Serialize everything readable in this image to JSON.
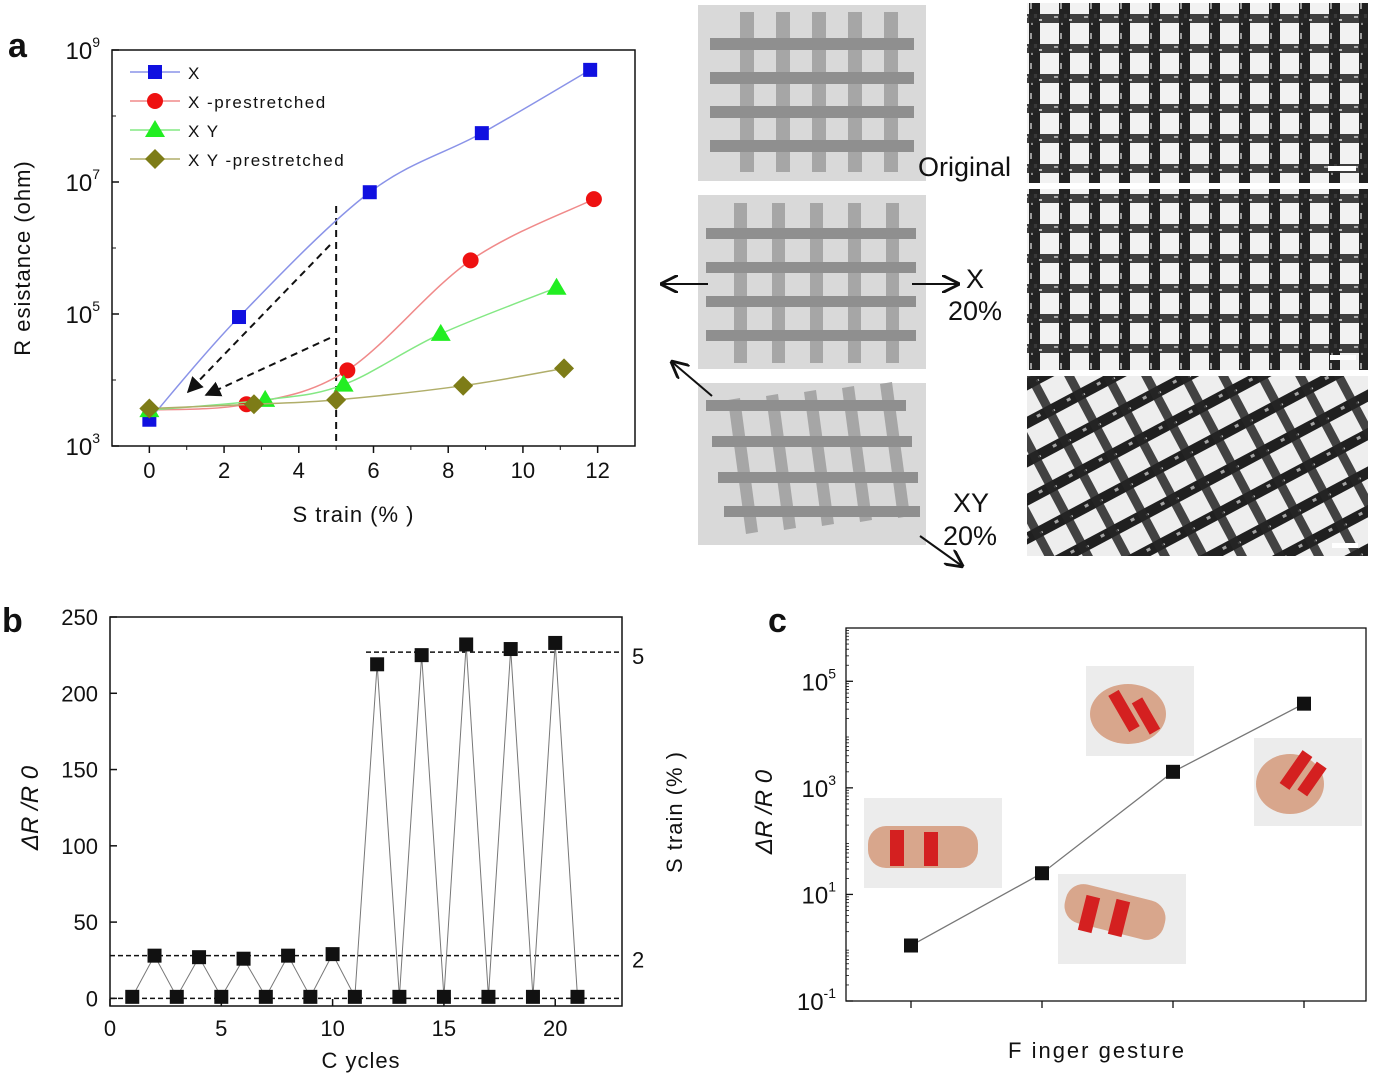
{
  "panels": {
    "a": "a",
    "b": "b",
    "c": "c"
  },
  "micro": {
    "labels": [
      "Original",
      "X",
      "20%",
      "XY",
      "20%"
    ]
  },
  "chart_data": [
    {
      "panel": "a",
      "type": "line",
      "xlabel": "S train (% )",
      "ylabel": "R esistance (ohm)",
      "xlim": [
        -1,
        13
      ],
      "ylim_log10": [
        3,
        9
      ],
      "log_y": true,
      "xticks": [
        "0",
        "2",
        "4",
        "6",
        "8",
        "10",
        "12"
      ],
      "yticks": [
        "10^3",
        "10^5",
        "10^7",
        "10^9"
      ],
      "legend": "top-left",
      "series": [
        {
          "name": "X",
          "color": "#1010e0",
          "line": "#8a93e8",
          "marker": "square",
          "x": [
            0,
            2.4,
            5.9,
            8.9,
            11.8
          ],
          "y": [
            2500,
            90000,
            7000000,
            55000000,
            500000000
          ]
        },
        {
          "name": "X -prestretched",
          "color": "#ee1111",
          "line": "#f08a8a",
          "marker": "circle",
          "x": [
            2.6,
            5.3,
            8.6,
            11.9
          ],
          "y": [
            4300,
            14000,
            650000,
            5500000
          ]
        },
        {
          "name": "X Y",
          "color": "#22ee22",
          "line": "#84e884",
          "marker": "triangle",
          "x": [
            0,
            3.1,
            5.2,
            7.8,
            10.9
          ],
          "y": [
            3500,
            5000,
            8500,
            50000,
            250000
          ]
        },
        {
          "name": "X Y -prestretched",
          "color": "#7d7c17",
          "line": "#b0ae6a",
          "marker": "diamond",
          "x": [
            0,
            2.8,
            5.0,
            8.4,
            11.1
          ],
          "y": [
            3700,
            4300,
            5000,
            8200,
            15000
          ]
        }
      ],
      "annotations": {
        "vline_x": 5
      }
    },
    {
      "panel": "b",
      "type": "line",
      "xlabel": "C ycles",
      "ylabel": "ΔR /R 0",
      "y2label": "S train (% )",
      "xlim": [
        0,
        23
      ],
      "ylim": [
        -5,
        250
      ],
      "xticks": [
        "0",
        "5",
        "10",
        "15",
        "20"
      ],
      "yticks": [
        "0",
        "50",
        "100",
        "150",
        "200",
        "250"
      ],
      "y2ticks": [
        "2",
        "5"
      ],
      "reference_lines": [
        0,
        28,
        227
      ],
      "series": [
        {
          "x": [
            1,
            2,
            3,
            4,
            5,
            6,
            7,
            8,
            9,
            10,
            11,
            12,
            13,
            14,
            15,
            16,
            17,
            18,
            19,
            20,
            21
          ],
          "y": [
            1,
            28,
            1,
            27,
            1,
            26,
            1,
            28,
            1,
            29,
            1,
            219,
            1,
            225,
            1,
            232,
            1,
            229,
            1,
            233,
            1
          ]
        }
      ]
    },
    {
      "panel": "c",
      "type": "line",
      "xlabel": "F inger gesture",
      "ylabel": "ΔR /R 0",
      "log_y": true,
      "ylim_log10": [
        -1,
        6
      ],
      "yticks": [
        "10^-1",
        "10^1",
        "10^3",
        "10^5"
      ],
      "categories": [
        "1",
        "2",
        "3",
        "4"
      ],
      "series": [
        {
          "x": [
            1,
            2,
            3,
            4
          ],
          "y": [
            1.1,
            25,
            2000,
            38000
          ]
        }
      ]
    }
  ]
}
